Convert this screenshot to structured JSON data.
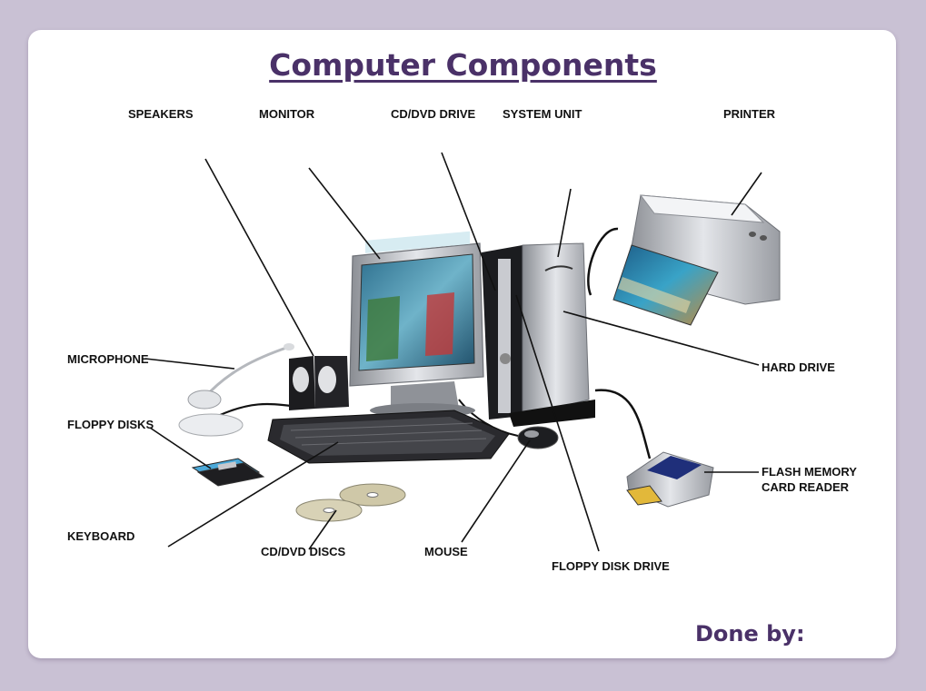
{
  "title": "Computer Components",
  "footer": "Done by:",
  "labels": {
    "speakers": "SPEAKERS",
    "monitor": "MONITOR",
    "cd_dvd_drive": "CD/DVD DRIVE",
    "system_unit": "SYSTEM UNIT",
    "printer": "PRINTER",
    "microphone": "MICROPHONE",
    "hard_drive": "HARD DRIVE",
    "floppy_disks": "FLOPPY DISKS",
    "flash_memory_line1": "FLASH MEMORY",
    "flash_memory_line2": "CARD READER",
    "keyboard": "KEYBOARD",
    "cd_dvd_discs": "CD/DVD DISCS",
    "mouse": "MOUSE",
    "floppy_disk_drive": "FLOPPY DISK DRIVE"
  },
  "colors": {
    "title": "#4a3168",
    "frame": "#c9c1d4"
  }
}
